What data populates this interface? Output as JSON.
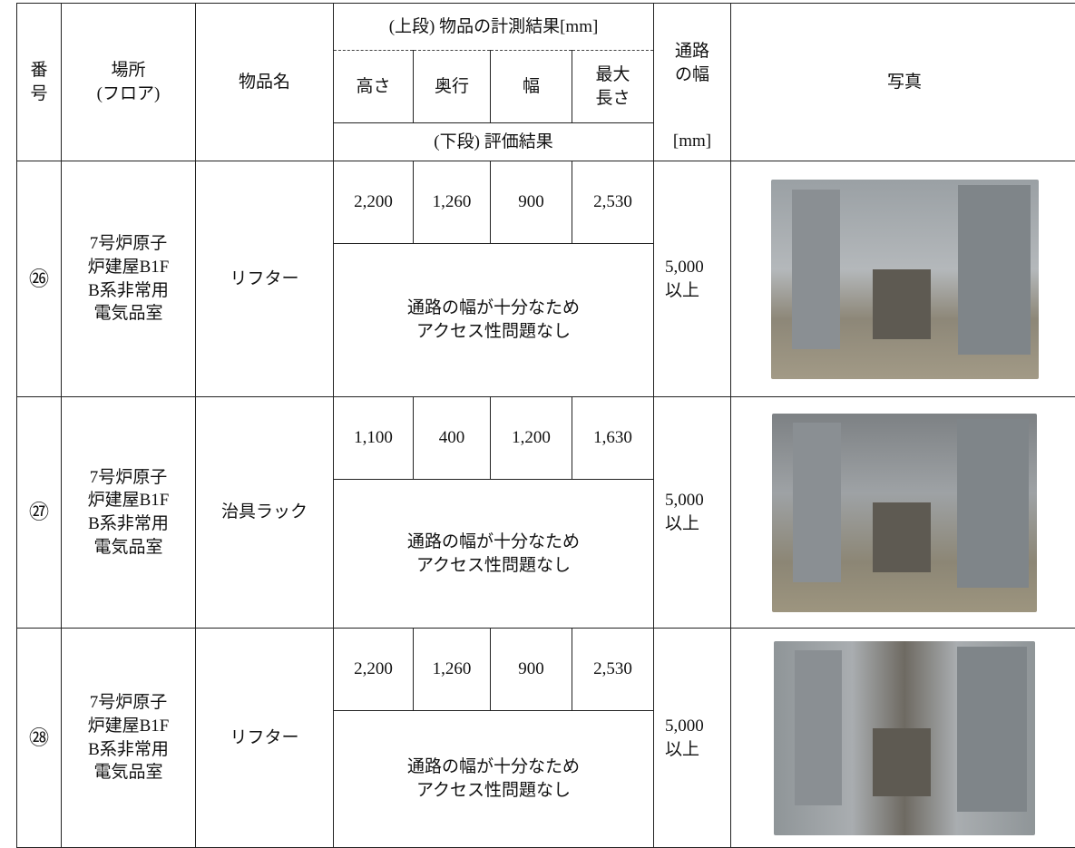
{
  "table": {
    "header": {
      "number": "番号",
      "location": "場所\n(フロア)",
      "item": "物品名",
      "upper": "(上段) 物品の計測結果[mm]",
      "height": "高さ",
      "depth": "奥行",
      "width": "幅",
      "max_length": "最大\n長さ",
      "passage": "通路\nの幅",
      "lower": "(下段) 評価結果",
      "passage_unit": "[mm]",
      "photo": "写真"
    },
    "rows": [
      {
        "number": "㉖",
        "location": "7号炉原子\n炉建屋B1F\nB系非常用\n電気品室",
        "item": "リフター",
        "height": "2,200",
        "depth": "1,260",
        "width": "900",
        "max_length": "2,530",
        "passage": "5,000\n以上",
        "evaluation": "通路の幅が十分なため\nアクセス性問題なし"
      },
      {
        "number": "㉗",
        "location": "7号炉原子\n炉建屋B1F\nB系非常用\n電気品室",
        "item": "治具ラック",
        "height": "1,100",
        "depth": "400",
        "width": "1,200",
        "max_length": "1,630",
        "passage": "5,000\n以上",
        "evaluation": "通路の幅が十分なため\nアクセス性問題なし"
      },
      {
        "number": "㉘",
        "location": "7号炉原子\n炉建屋B1F\nB系非常用\n電気品室",
        "item": "リフター",
        "height": "2,200",
        "depth": "1,260",
        "width": "900",
        "max_length": "2,530",
        "passage": "5,000\n以上",
        "evaluation": "通路の幅が十分なため\nアクセス性問題なし"
      }
    ]
  }
}
